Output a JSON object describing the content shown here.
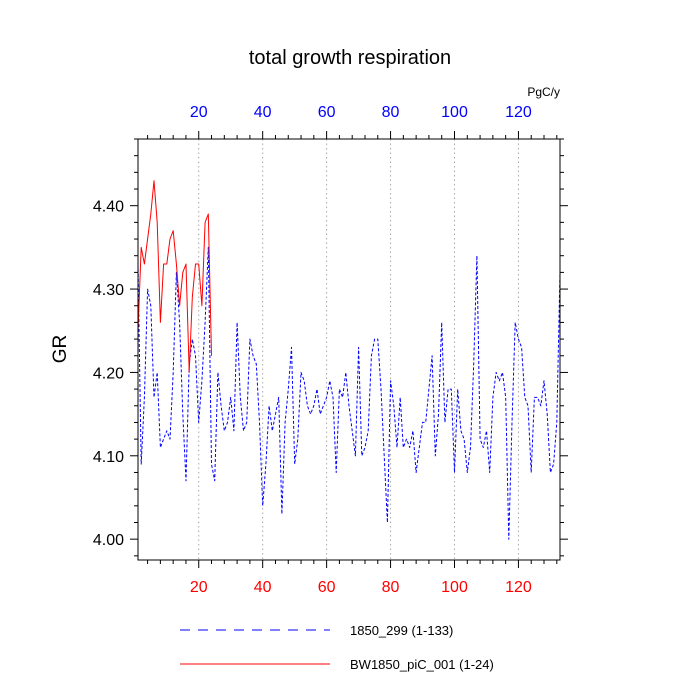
{
  "chart_data": {
    "type": "line",
    "title": "total growth respiration",
    "ylabel": "GR",
    "units": "PgC/y",
    "xlim": [
      1,
      133
    ],
    "ylim": [
      3.975,
      4.48
    ],
    "x_ticks": [
      "20",
      "40",
      "60",
      "80",
      "100",
      "120"
    ],
    "x_tick_values": [
      20,
      40,
      60,
      80,
      100,
      120
    ],
    "y_ticks": [
      "4.00",
      "4.10",
      "4.20",
      "4.30",
      "4.40"
    ],
    "y_tick_values": [
      4.0,
      4.1,
      4.2,
      4.3,
      4.4
    ],
    "grid": "vertical-dotted",
    "bottom_tick_color": "#ff0000",
    "top_tick_color": "#0000ff",
    "legend": [
      {
        "label": "1850_299 (1-133)",
        "color": "#0000ff",
        "style": "dashed"
      },
      {
        "label": "BW1850_piC_001 (1-24)",
        "color": "#ff0000",
        "style": "solid"
      }
    ],
    "series": [
      {
        "name": "1850_299 (1-133)",
        "color": "#0000ff",
        "style": "dashed",
        "x_start": 1,
        "values": [
          4.33,
          4.09,
          4.17,
          4.3,
          4.28,
          4.17,
          4.2,
          4.11,
          4.12,
          4.13,
          4.12,
          4.2,
          4.32,
          4.26,
          4.15,
          4.07,
          4.21,
          4.24,
          4.22,
          4.14,
          4.19,
          4.26,
          4.35,
          4.09,
          4.07,
          4.2,
          4.16,
          4.13,
          4.14,
          4.17,
          4.13,
          4.26,
          4.17,
          4.13,
          4.14,
          4.24,
          4.22,
          4.21,
          4.14,
          4.04,
          4.09,
          4.16,
          4.13,
          4.15,
          4.17,
          4.03,
          4.14,
          4.18,
          4.23,
          4.09,
          4.12,
          4.2,
          4.19,
          4.16,
          4.15,
          4.16,
          4.18,
          4.15,
          4.16,
          4.17,
          4.19,
          4.17,
          4.08,
          4.18,
          4.17,
          4.2,
          4.16,
          4.13,
          4.1,
          4.23,
          4.1,
          4.11,
          4.13,
          4.22,
          4.24,
          4.24,
          4.18,
          4.1,
          4.02,
          4.19,
          4.16,
          4.11,
          4.17,
          4.11,
          4.12,
          4.11,
          4.13,
          4.08,
          4.11,
          4.14,
          4.14,
          4.18,
          4.22,
          4.1,
          4.15,
          4.26,
          4.14,
          4.18,
          4.18,
          4.08,
          4.18,
          4.13,
          4.12,
          4.08,
          4.11,
          4.21,
          4.34,
          4.12,
          4.11,
          4.13,
          4.08,
          4.17,
          4.2,
          4.19,
          4.2,
          4.17,
          4.0,
          4.14,
          4.26,
          4.24,
          4.23,
          4.17,
          4.16,
          4.08,
          4.17,
          4.17,
          4.16,
          4.19,
          4.15,
          4.08,
          4.09,
          4.14,
          4.32
        ]
      },
      {
        "name": "BW1850_piC_001 (1-24)",
        "color": "#ff0000",
        "style": "solid",
        "x_start": 1,
        "values": [
          4.25,
          4.35,
          4.33,
          4.36,
          4.39,
          4.43,
          4.38,
          4.26,
          4.33,
          4.33,
          4.36,
          4.37,
          4.33,
          4.28,
          4.32,
          4.33,
          4.2,
          4.29,
          4.33,
          4.33,
          4.28,
          4.38,
          4.39,
          4.22
        ]
      }
    ]
  }
}
